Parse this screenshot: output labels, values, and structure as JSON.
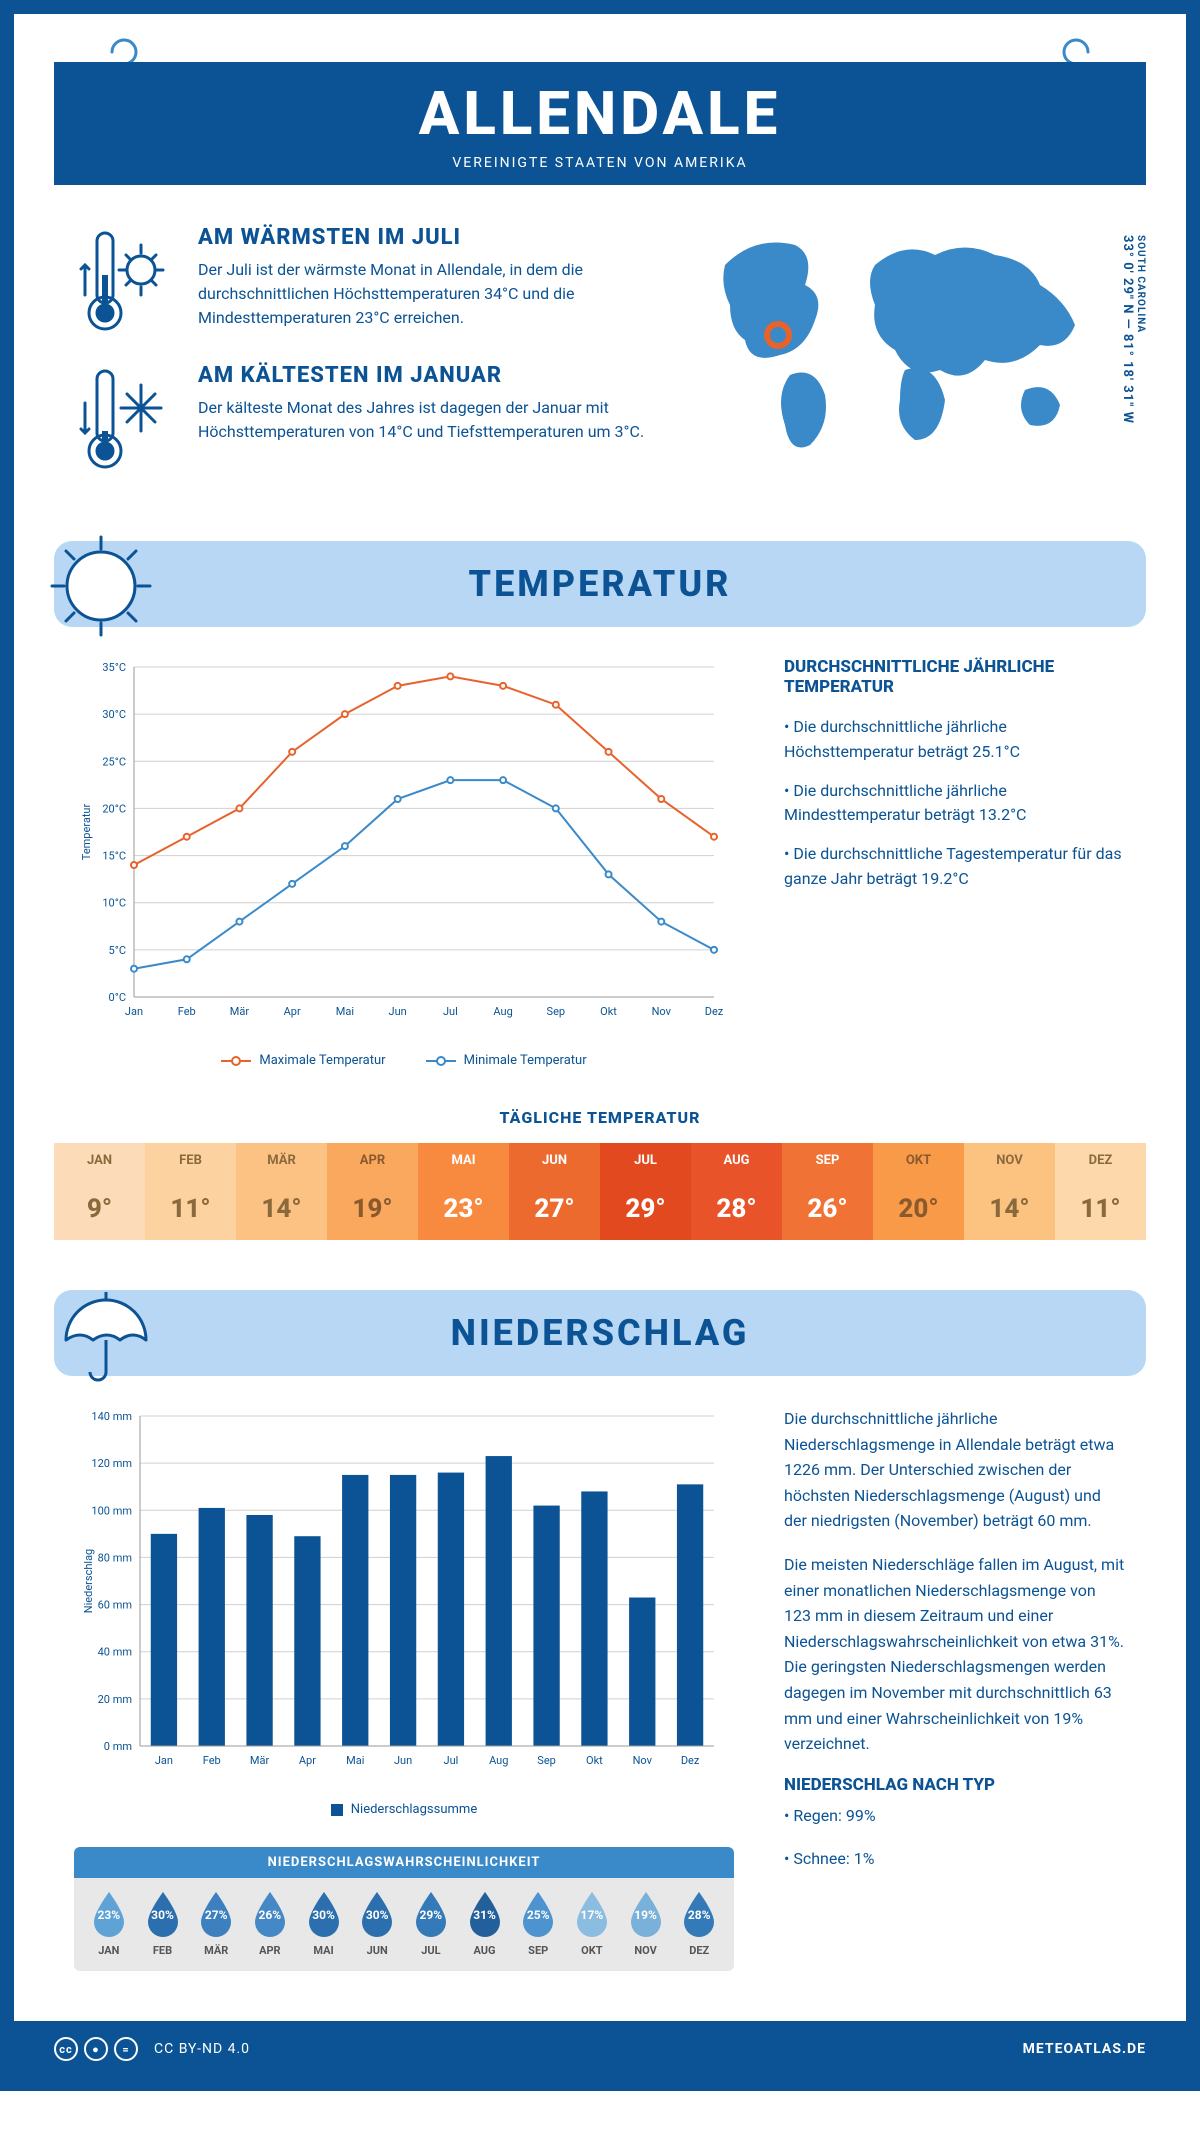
{
  "colors": {
    "primary": "#0b5394",
    "lightblue": "#b8d7f4",
    "midblue": "#3a89c9",
    "orange": "#e8622c",
    "grid": "#d0d0d0",
    "bar": "#0b5394"
  },
  "header": {
    "title": "ALLENDALE",
    "subtitle": "VEREINIGTE STAATEN VON AMERIKA"
  },
  "coords": {
    "state": "SOUTH CAROLINA",
    "latlon": "33° 0' 29\" N — 81° 18' 31\" W"
  },
  "warm": {
    "title": "AM WÄRMSTEN IM JULI",
    "text": "Der Juli ist der wärmste Monat in Allendale, in dem die durchschnittlichen Höchsttemperaturen 34°C und die Mindesttemperaturen 23°C erreichen."
  },
  "cold": {
    "title": "AM KÄLTESTEN IM JANUAR",
    "text": "Der kälteste Monat des Jahres ist dagegen der Januar mit Höchsttemperaturen von 14°C und Tiefsttemperaturen um 3°C."
  },
  "sections": {
    "temp": "TEMPERATUR",
    "precip": "NIEDERSCHLAG"
  },
  "temp_chart": {
    "type": "line",
    "months": [
      "Jan",
      "Feb",
      "Mär",
      "Apr",
      "Mai",
      "Jun",
      "Jul",
      "Aug",
      "Sep",
      "Okt",
      "Nov",
      "Dez"
    ],
    "max_series": [
      14,
      17,
      20,
      26,
      30,
      33,
      34,
      33,
      31,
      26,
      21,
      17
    ],
    "min_series": [
      3,
      4,
      8,
      12,
      16,
      21,
      23,
      23,
      20,
      13,
      8,
      5
    ],
    "ylabel": "Temperatur",
    "ylim": [
      0,
      35
    ],
    "ytick_step": 5,
    "max_color": "#e8622c",
    "min_color": "#3a89c9",
    "grid_color": "#d0d0d0",
    "line_width": 2,
    "marker_size": 3,
    "legend": {
      "max": "Maximale Temperatur",
      "min": "Minimale Temperatur"
    }
  },
  "temp_text": {
    "heading": "DURCHSCHNITTLICHE JÄHRLICHE TEMPERATUR",
    "p1": "• Die durchschnittliche jährliche Höchsttemperatur beträgt 25.1°C",
    "p2": "• Die durchschnittliche jährliche Mindesttemperatur beträgt 13.2°C",
    "p3": "• Die durchschnittliche Tagestemperatur für das ganze Jahr beträgt 19.2°C"
  },
  "daily": {
    "title": "TÄGLICHE TEMPERATUR",
    "months": [
      "JAN",
      "FEB",
      "MÄR",
      "APR",
      "MAI",
      "JUN",
      "JUL",
      "AUG",
      "SEP",
      "OKT",
      "NOV",
      "DEZ"
    ],
    "values": [
      "9°",
      "11°",
      "14°",
      "19°",
      "23°",
      "27°",
      "29°",
      "28°",
      "26°",
      "20°",
      "14°",
      "11°"
    ],
    "header_colors": [
      "#fcdcb8",
      "#fcd2a0",
      "#fbc283",
      "#f9a85e",
      "#f78a3e",
      "#ed6a2f",
      "#e3491f",
      "#e8532a",
      "#f07335",
      "#f99a49",
      "#fcc380",
      "#fcd8aa"
    ],
    "value_colors": [
      "#fcdcb8",
      "#fcd2a0",
      "#fbc283",
      "#f9a85e",
      "#f78a3e",
      "#ed6a2f",
      "#e3491f",
      "#e8532a",
      "#f07335",
      "#f99a49",
      "#fcc380",
      "#fcd8aa"
    ],
    "text_colors": [
      "#8a6a3d",
      "#8a6a3d",
      "#8a6a3d",
      "#8a5a2d",
      "#ffffff",
      "#ffffff",
      "#ffffff",
      "#ffffff",
      "#ffffff",
      "#8a5a2d",
      "#8a6a3d",
      "#8a6a3d"
    ]
  },
  "precip_chart": {
    "type": "bar",
    "months": [
      "Jan",
      "Feb",
      "Mär",
      "Apr",
      "Mai",
      "Jun",
      "Jul",
      "Aug",
      "Sep",
      "Okt",
      "Nov",
      "Dez"
    ],
    "values": [
      90,
      101,
      98,
      89,
      115,
      115,
      116,
      123,
      102,
      108,
      63,
      111
    ],
    "ylabel": "Niederschlag",
    "ylim": [
      0,
      140
    ],
    "ytick_step": 20,
    "bar_color": "#0b5394",
    "grid_color": "#d0d0d0",
    "bar_width": 0.55,
    "legend": "Niederschlagssumme"
  },
  "precip_text": {
    "p1": "Die durchschnittliche jährliche Niederschlagsmenge in Allendale beträgt etwa 1226 mm. Der Unterschied zwischen der höchsten Niederschlagsmenge (August) und der niedrigsten (November) beträgt 60 mm.",
    "p2": "Die meisten Niederschläge fallen im August, mit einer monatlichen Niederschlagsmenge von 123 mm in diesem Zeitraum und einer Niederschlagswahrscheinlichkeit von etwa 31%. Die geringsten Niederschlagsmengen werden dagegen im November mit durchschnittlich 63 mm und einer Wahrscheinlichkeit von 19% verzeichnet.",
    "type_heading": "NIEDERSCHLAG NACH TYP",
    "type1": "• Regen: 99%",
    "type2": "• Schnee: 1%"
  },
  "prob": {
    "title": "NIEDERSCHLAGSWAHRSCHEINLICHKEIT",
    "months": [
      "JAN",
      "FEB",
      "MÄR",
      "APR",
      "MAI",
      "JUN",
      "JUL",
      "AUG",
      "SEP",
      "OKT",
      "NOV",
      "DEZ"
    ],
    "values": [
      "23%",
      "30%",
      "27%",
      "26%",
      "30%",
      "30%",
      "29%",
      "31%",
      "25%",
      "17%",
      "19%",
      "28%"
    ],
    "drop_colors": [
      "#5fa3d6",
      "#2b6fae",
      "#3c80bf",
      "#4588c6",
      "#2b6fae",
      "#2b6fae",
      "#347ab8",
      "#235f9a",
      "#4d93cf",
      "#8bbde0",
      "#79b1da",
      "#347ab8"
    ]
  },
  "footer": {
    "license": "CC BY-ND 4.0",
    "site": "METEOATLAS.DE"
  }
}
